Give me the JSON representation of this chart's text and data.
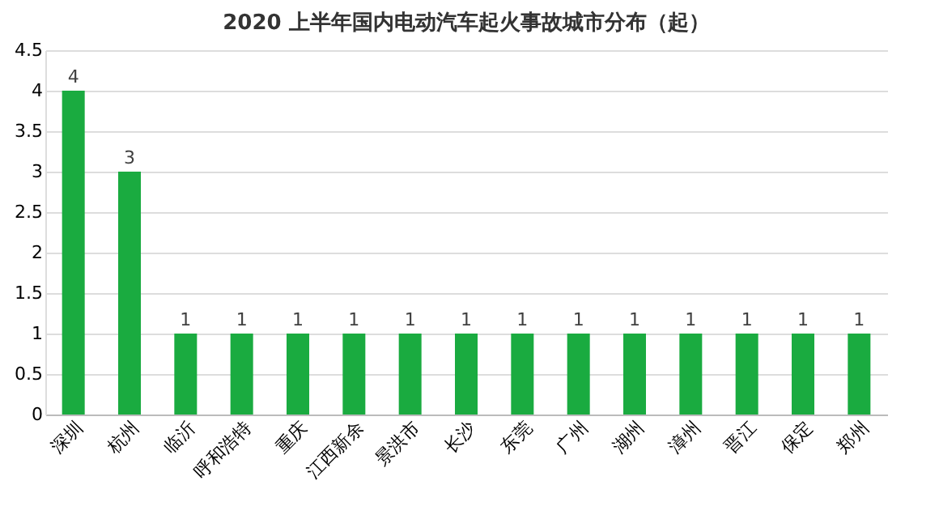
{
  "chart_data": {
    "type": "bar",
    "title": "2020 上半年国内电动汽车起火事故城市分布（起）",
    "categories": [
      "深圳",
      "杭州",
      "临沂",
      "呼和浩特",
      "重庆",
      "江西新余",
      "景洪市",
      "长沙",
      "东莞",
      "广州",
      "湖州",
      "漳州",
      "晋江",
      "保定",
      "郑州"
    ],
    "values": [
      4,
      3,
      1,
      1,
      1,
      1,
      1,
      1,
      1,
      1,
      1,
      1,
      1,
      1,
      1
    ],
    "color": "#1aab40",
    "ylim": [
      0,
      4.5
    ],
    "yticks": [
      0,
      0.5,
      1,
      1.5,
      2,
      2.5,
      3,
      3.5,
      4,
      4.5
    ],
    "grid": "y",
    "data_labels": true
  }
}
